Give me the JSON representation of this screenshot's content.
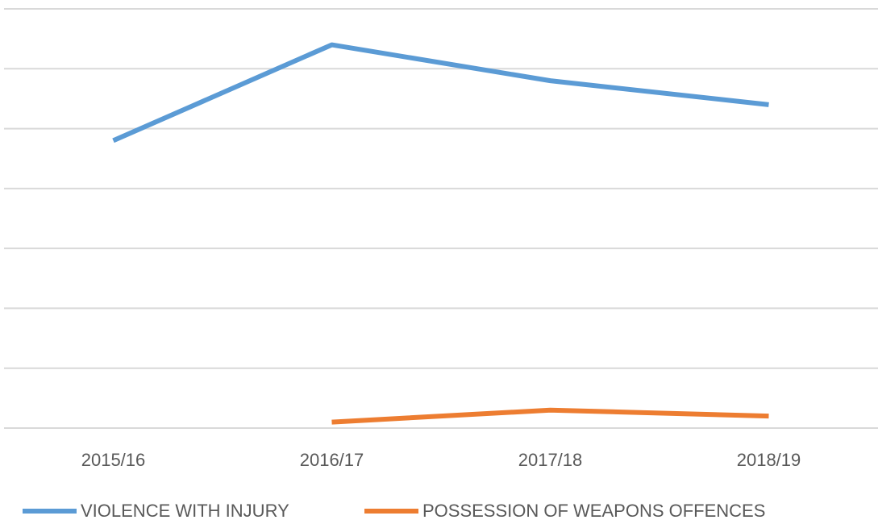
{
  "chart_data": {
    "type": "line",
    "categories": [
      "2015/16",
      "2016/17",
      "2017/18",
      "2018/19"
    ],
    "series": [
      {
        "name": "VIOLENCE WITH INJURY",
        "color": "#5b9bd5",
        "values": [
          4.8,
          6.4,
          5.8,
          5.4
        ]
      },
      {
        "name": "POSSESSION OF WEAPONS OFFENCES",
        "color": "#ed7d31",
        "values": [
          null,
          0.1,
          0.3,
          0.2
        ]
      }
    ],
    "ylim": [
      0,
      7
    ],
    "yticks": [
      0,
      1,
      2,
      3,
      4,
      5,
      6,
      7
    ],
    "grid": true,
    "legend": "bottom"
  }
}
